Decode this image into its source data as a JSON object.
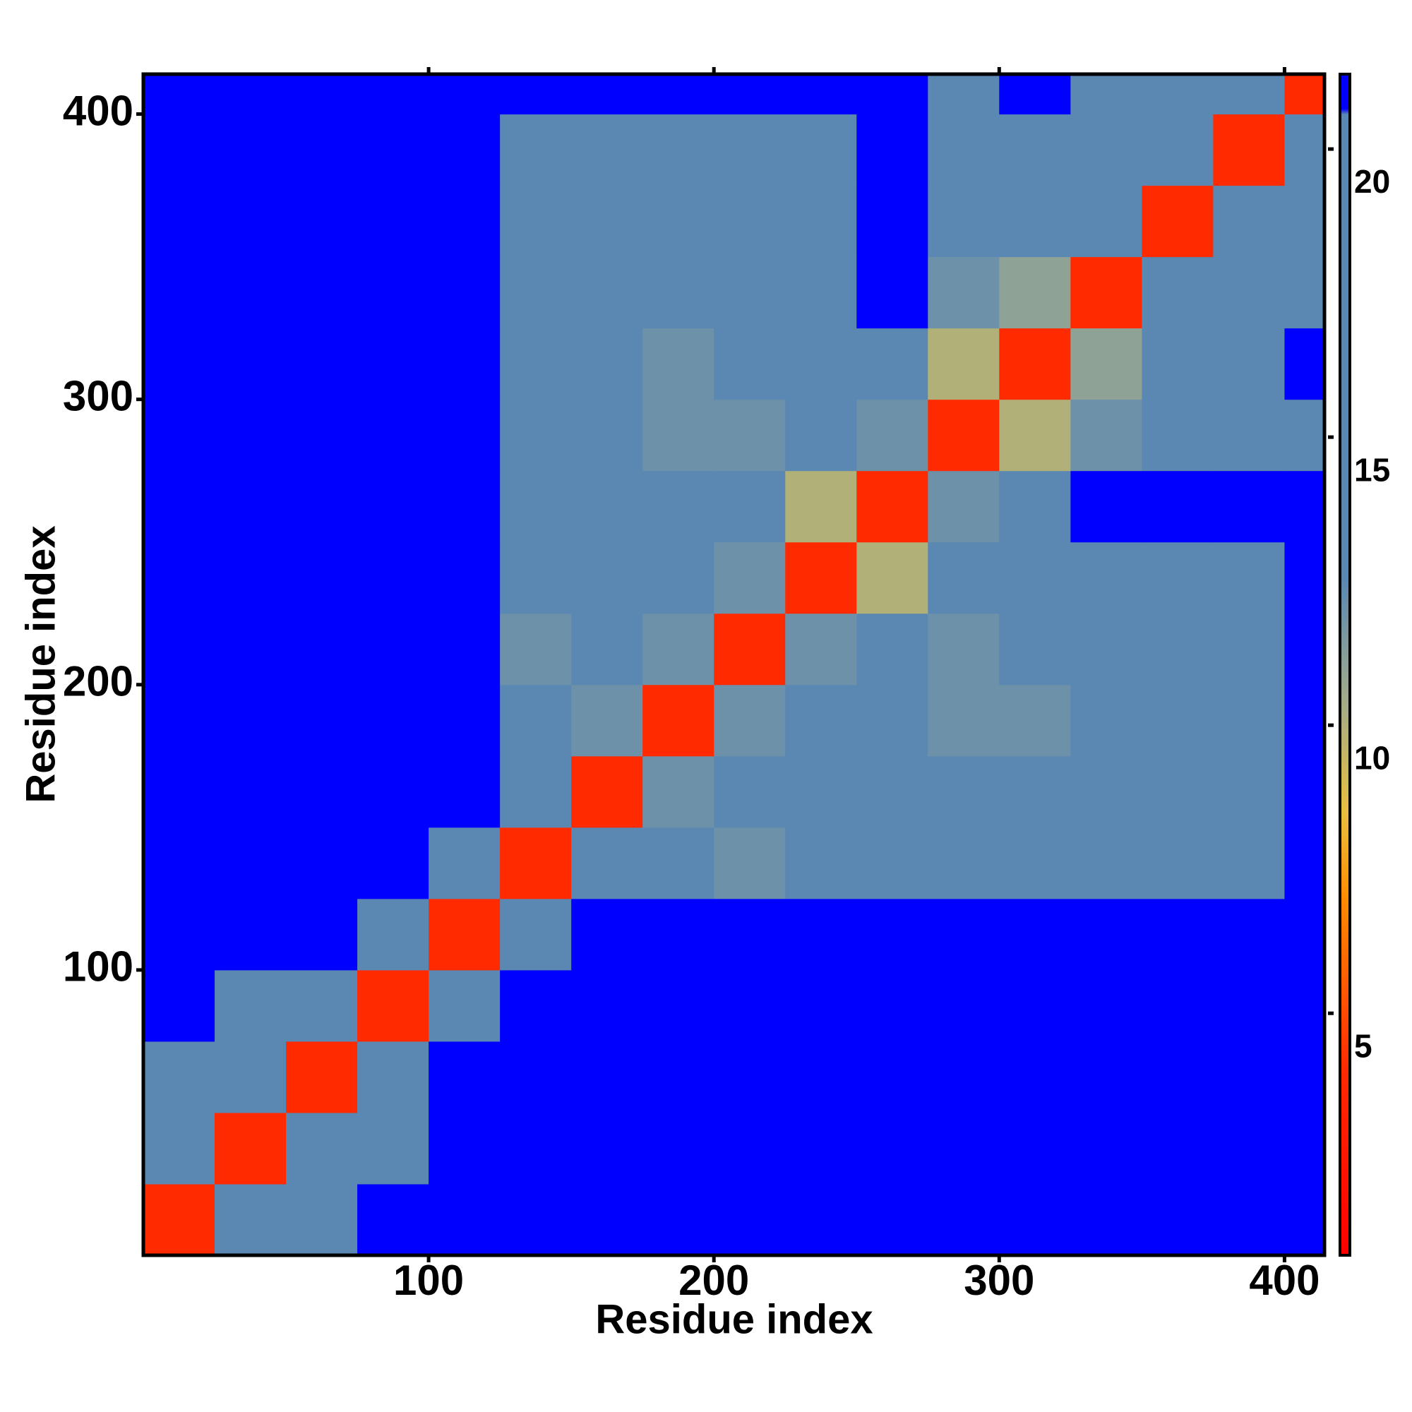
{
  "chart_data": {
    "type": "heatmap",
    "xlabel": "Residue index",
    "ylabel": "Residue index",
    "xbins": [
      0,
      25,
      50,
      75,
      100,
      125,
      150,
      175,
      200,
      225,
      250,
      275,
      300,
      325,
      350,
      375,
      400,
      414
    ],
    "ybins": [
      0,
      25,
      50,
      75,
      100,
      125,
      150,
      175,
      200,
      225,
      250,
      275,
      300,
      325,
      350,
      375,
      400,
      414
    ],
    "xlim": [
      0,
      414
    ],
    "ylim": [
      0,
      414
    ],
    "xticks": [
      100,
      200,
      300,
      400
    ],
    "yticks": [
      100,
      200,
      300,
      400
    ],
    "z": [
      [
        4,
        14,
        16,
        21,
        21,
        21,
        21,
        21,
        21,
        21,
        21,
        21,
        21,
        21,
        21,
        21,
        21
      ],
      [
        14,
        4,
        13,
        20,
        21,
        21,
        21,
        21,
        21,
        21,
        21,
        21,
        21,
        21,
        21,
        21,
        21
      ],
      [
        16,
        13,
        4,
        16,
        21,
        21,
        21,
        21,
        21,
        21,
        21,
        21,
        21,
        21,
        21,
        21,
        21
      ],
      [
        21,
        20,
        16,
        4,
        19,
        21,
        21,
        21,
        21,
        21,
        21,
        21,
        21,
        21,
        21,
        21,
        21
      ],
      [
        21,
        21,
        21,
        19,
        4,
        18,
        21,
        21,
        21,
        21,
        21,
        21,
        21,
        21,
        21,
        21,
        21
      ],
      [
        21,
        21,
        21,
        21,
        18,
        4,
        15,
        18,
        12,
        16,
        17,
        17,
        17,
        18,
        19,
        20,
        21
      ],
      [
        21,
        21,
        21,
        21,
        21,
        15,
        4,
        12,
        19,
        20,
        18,
        17,
        16,
        15,
        18,
        19,
        21
      ],
      [
        21,
        21,
        21,
        21,
        21,
        18,
        12,
        4,
        12,
        17,
        17,
        12,
        12,
        17,
        17,
        19,
        21
      ],
      [
        21,
        21,
        21,
        21,
        21,
        12,
        19,
        12,
        4,
        12,
        17,
        12,
        16,
        13,
        17,
        18,
        21
      ],
      [
        21,
        21,
        21,
        21,
        21,
        16,
        20,
        17,
        12,
        4,
        10,
        15,
        18,
        16,
        18,
        18,
        21
      ],
      [
        21,
        21,
        21,
        21,
        21,
        17,
        18,
        17,
        17,
        10,
        4,
        12,
        20,
        21,
        21,
        21,
        21
      ],
      [
        21,
        21,
        21,
        21,
        21,
        17,
        17,
        12,
        12,
        15,
        12,
        4,
        10,
        12,
        17,
        18,
        20
      ],
      [
        21,
        21,
        21,
        21,
        21,
        17,
        16,
        12,
        16,
        18,
        20,
        10,
        4,
        11,
        16,
        18,
        21
      ],
      [
        21,
        21,
        21,
        21,
        21,
        18,
        15,
        17,
        13,
        16,
        21,
        12,
        11,
        4,
        13,
        17,
        20
      ],
      [
        21,
        21,
        21,
        21,
        21,
        19,
        18,
        17,
        17,
        18,
        21,
        17,
        16,
        13,
        4,
        14,
        18
      ],
      [
        21,
        21,
        21,
        21,
        21,
        20,
        19,
        19,
        18,
        18,
        21,
        18,
        18,
        17,
        14,
        4,
        14
      ],
      [
        21,
        21,
        21,
        21,
        21,
        21,
        21,
        21,
        21,
        21,
        21,
        20,
        21,
        20,
        18,
        14,
        4
      ]
    ],
    "colorbar": {
      "lim": [
        0.8,
        21.3
      ],
      "ticks": [
        5,
        10,
        15,
        20
      ],
      "colorscale": [
        [
          0.8,
          "#ff0000"
        ],
        [
          4,
          "#ff2a00"
        ],
        [
          7,
          "#ff8c00"
        ],
        [
          8.5,
          "#e8c040"
        ],
        [
          10.5,
          "#9faa8c"
        ],
        [
          12.5,
          "#5b88b2"
        ],
        [
          20.6,
          "#5b88b2"
        ],
        [
          20.7,
          "#0000ff"
        ],
        [
          21.3,
          "#0000ff"
        ]
      ]
    }
  }
}
